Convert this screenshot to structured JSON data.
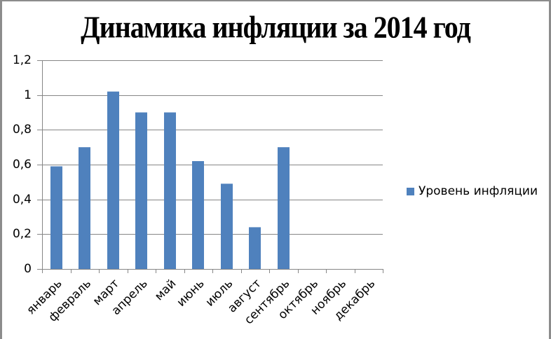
{
  "chart_data": {
    "type": "bar",
    "title": "Динамика инфляции за 2014 год",
    "xlabel": "",
    "ylabel": "",
    "categories": [
      "январь",
      "февраль",
      "март",
      "апрель",
      "май",
      "июнь",
      "июль",
      "август",
      "сентябрь",
      "октябрь",
      "ноябрь",
      "декабрь"
    ],
    "series": [
      {
        "name": "Уровень инфляции",
        "color": "#4f81bd",
        "values": [
          0.59,
          0.7,
          1.02,
          0.9,
          0.9,
          0.62,
          0.49,
          0.24,
          0.7,
          null,
          null,
          null
        ]
      }
    ],
    "ylim": [
      0,
      1.2
    ],
    "yticks": [
      0,
      0.2,
      0.4,
      0.6,
      0.8,
      1,
      1.2
    ],
    "ytick_labels": [
      "0",
      "0,2",
      "0,4",
      "0,6",
      "0,8",
      "1",
      "1,2"
    ],
    "grid": true,
    "legend_position": "right"
  },
  "legend": {
    "label": "Уровень инфляции"
  },
  "colors": {
    "bar": "#4f81bd",
    "grid": "#868686",
    "axis": "#868686",
    "frame": "#8c8c8c"
  }
}
